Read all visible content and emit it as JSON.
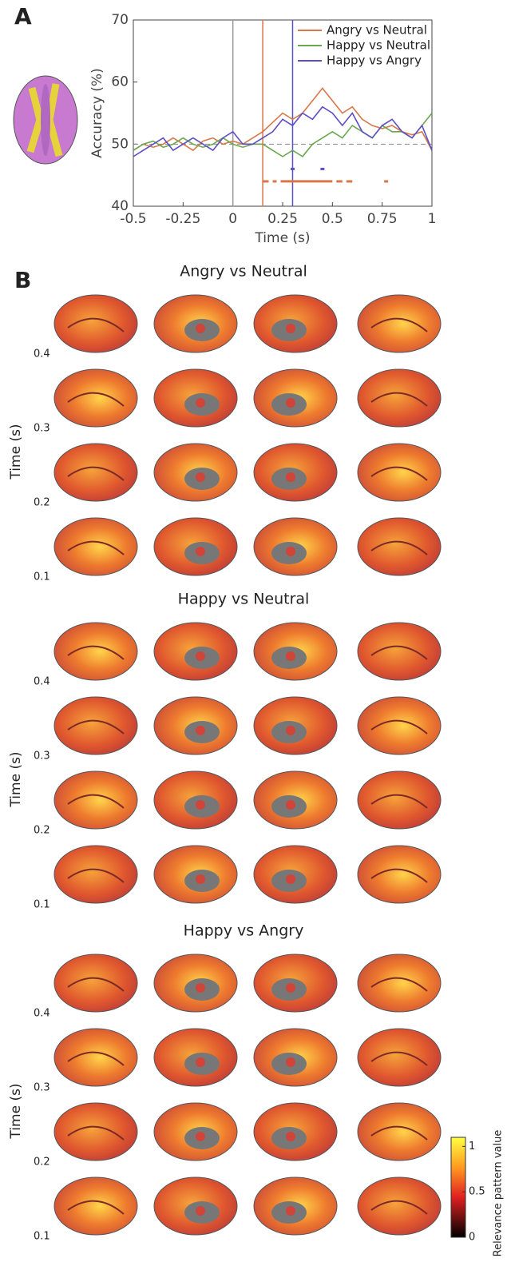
{
  "panel_labels": [
    "A",
    "B"
  ],
  "chart_data": [
    {
      "type": "line",
      "xlabel": "Time (s)",
      "ylabel": "Accuracy (%)",
      "x": [
        -0.5,
        -0.45,
        -0.4,
        -0.35,
        -0.3,
        -0.25,
        -0.2,
        -0.15,
        -0.1,
        -0.05,
        0,
        0.05,
        0.1,
        0.15,
        0.2,
        0.25,
        0.3,
        0.35,
        0.4,
        0.45,
        0.5,
        0.55,
        0.6,
        0.65,
        0.7,
        0.75,
        0.8,
        0.85,
        0.9,
        0.95,
        1
      ],
      "series": [
        {
          "name": "Angry vs Neutral",
          "color": "#d9774b",
          "values": [
            49,
            50,
            49.5,
            50,
            51,
            50,
            49,
            50.5,
            51,
            50,
            50.5,
            50,
            51,
            52,
            53.5,
            55,
            54,
            55,
            57,
            59,
            57,
            55,
            56,
            54,
            53,
            52.5,
            53,
            52,
            51.5,
            52,
            49
          ]
        },
        {
          "name": "Happy vs Neutral",
          "color": "#6aa84f",
          "values": [
            49,
            50,
            50.5,
            49.5,
            50,
            51,
            50,
            49.5,
            50,
            51,
            50,
            49.5,
            50,
            50,
            49,
            48,
            49,
            48,
            50,
            51,
            52,
            51,
            53,
            52,
            51,
            53,
            52,
            52,
            51,
            53,
            55
          ]
        },
        {
          "name": "Happy vs Angry",
          "color": "#5b4fc4",
          "values": [
            48,
            49,
            50,
            51,
            49,
            50,
            51,
            50,
            49,
            51,
            52,
            50,
            50,
            51,
            52,
            54,
            53,
            55,
            54,
            56,
            55,
            53,
            55,
            52,
            51,
            53,
            54,
            52,
            51,
            53,
            49
          ]
        }
      ],
      "xlim": [
        -0.5,
        1
      ],
      "xticks": [
        -0.5,
        -0.25,
        0,
        0.25,
        0.5,
        0.75,
        1
      ],
      "ylim": [
        40,
        70
      ],
      "yticks": [
        40,
        50,
        60,
        70
      ],
      "chance": 50,
      "vlines": [
        {
          "x": 0,
          "color": "#999999"
        },
        {
          "x": 0.15,
          "color": "#d9774b"
        },
        {
          "x": 0.3,
          "color": "#5b4fc4"
        }
      ],
      "significance": [
        {
          "color": "#5b4fc4",
          "y": 46,
          "segments": [
            [
              0.29,
              0.31
            ],
            [
              0.44,
              0.46
            ]
          ]
        },
        {
          "color": "#d9774b",
          "y": 44,
          "segments": [
            [
              0.15,
              0.18
            ],
            [
              0.2,
              0.22
            ],
            [
              0.24,
              0.5
            ],
            [
              0.52,
              0.55
            ],
            [
              0.57,
              0.6
            ],
            [
              0.76,
              0.78
            ]
          ]
        }
      ],
      "legend": "upper right"
    },
    {
      "type": "colorbar",
      "label": "Relevance pattern value",
      "ylim": [
        0,
        1.1
      ],
      "yticks": [
        0,
        0.5,
        1
      ],
      "colors": [
        "#000000",
        "#e02020",
        "#ff9a20",
        "#ffff40"
      ]
    }
  ],
  "panel_b": {
    "ylabel": "Time (s)",
    "sections": [
      {
        "title": "Angry vs Neutral",
        "time_ticks": [
          0.4,
          0.3,
          0.2,
          0.1
        ]
      },
      {
        "title": "Happy vs Neutral",
        "time_ticks": [
          0.4,
          0.3,
          0.2,
          0.1
        ]
      },
      {
        "title": "Happy vs Angry",
        "time_ticks": [
          0.4,
          0.3,
          0.2,
          0.1
        ]
      }
    ]
  }
}
